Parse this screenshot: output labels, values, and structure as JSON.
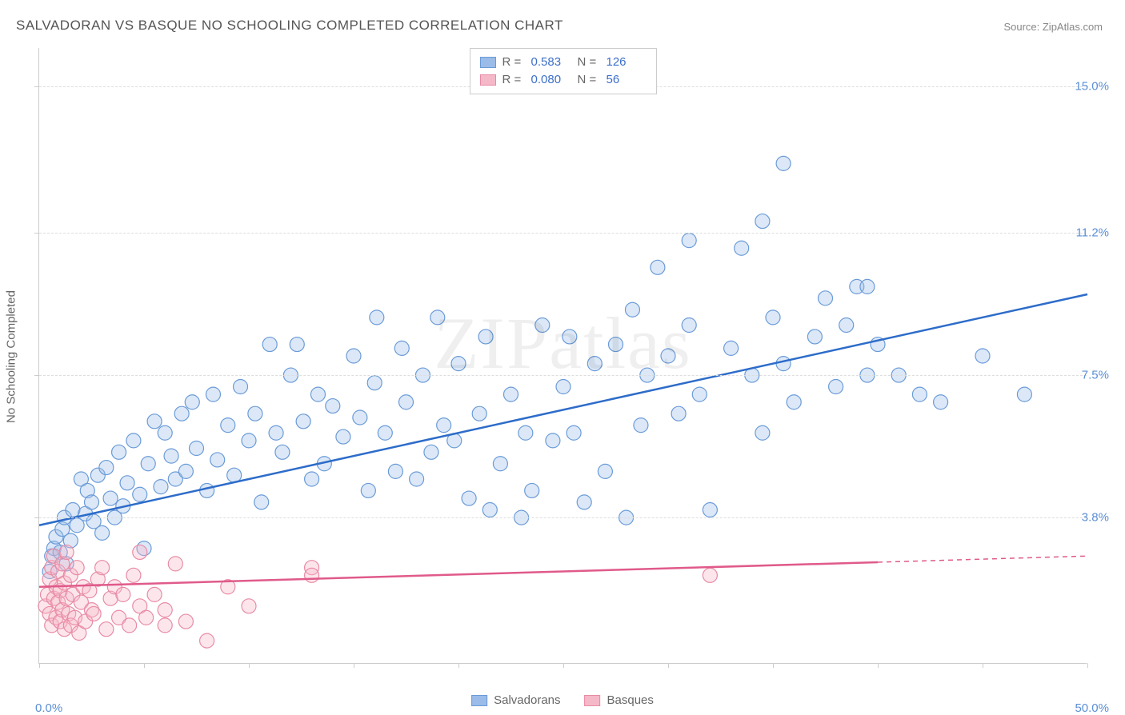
{
  "title": "SALVADORAN VS BASQUE NO SCHOOLING COMPLETED CORRELATION CHART",
  "source_label": "Source: ZipAtlas.com",
  "y_axis_label": "No Schooling Completed",
  "watermark": "ZIPatlas",
  "chart": {
    "type": "scatter",
    "background_color": "#ffffff",
    "grid_color": "#dddddd",
    "axis_color": "#cccccc",
    "x_range": [
      0,
      50
    ],
    "y_range": [
      0,
      16
    ],
    "x_tick_interval": 5,
    "y_ticks": [
      3.8,
      7.5,
      11.2,
      15.0
    ],
    "x_labels": [
      {
        "value": 0,
        "text": "0.0%"
      },
      {
        "value": 50,
        "text": "50.0%"
      }
    ],
    "y_labels": [
      {
        "value": 3.8,
        "text": "3.8%"
      },
      {
        "value": 7.5,
        "text": "7.5%"
      },
      {
        "value": 11.2,
        "text": "11.2%"
      },
      {
        "value": 15.0,
        "text": "15.0%"
      }
    ],
    "marker_radius": 9,
    "marker_stroke_width": 1.2,
    "marker_fill_opacity": 0.35,
    "trend_line_width": 2.5,
    "series": [
      {
        "name": "Salvadorans",
        "fill_color": "#9bbce8",
        "stroke_color": "#6a9bd8",
        "trend_color": "#2d6cc9",
        "r_value": "0.583",
        "n_value": "126",
        "trend_line": {
          "x1": 0,
          "y1": 3.6,
          "x2": 50,
          "y2": 9.6
        },
        "trend_dashed_from_x": null,
        "points": [
          [
            0.5,
            2.4
          ],
          [
            0.6,
            2.8
          ],
          [
            0.7,
            3.0
          ],
          [
            0.8,
            3.3
          ],
          [
            1.0,
            2.9
          ],
          [
            1.1,
            3.5
          ],
          [
            1.2,
            3.8
          ],
          [
            1.3,
            2.6
          ],
          [
            1.5,
            3.2
          ],
          [
            1.6,
            4.0
          ],
          [
            1.8,
            3.6
          ],
          [
            2.0,
            4.8
          ],
          [
            2.2,
            3.9
          ],
          [
            2.3,
            4.5
          ],
          [
            2.5,
            4.2
          ],
          [
            2.6,
            3.7
          ],
          [
            2.8,
            4.9
          ],
          [
            3.0,
            3.4
          ],
          [
            3.2,
            5.1
          ],
          [
            3.4,
            4.3
          ],
          [
            3.6,
            3.8
          ],
          [
            3.8,
            5.5
          ],
          [
            4.0,
            4.1
          ],
          [
            4.2,
            4.7
          ],
          [
            4.5,
            5.8
          ],
          [
            4.8,
            4.4
          ],
          [
            5.0,
            3.0
          ],
          [
            5.2,
            5.2
          ],
          [
            5.5,
            6.3
          ],
          [
            5.8,
            4.6
          ],
          [
            6.0,
            6.0
          ],
          [
            6.3,
            5.4
          ],
          [
            6.5,
            4.8
          ],
          [
            6.8,
            6.5
          ],
          [
            7.0,
            5.0
          ],
          [
            7.3,
            6.8
          ],
          [
            7.5,
            5.6
          ],
          [
            8.0,
            4.5
          ],
          [
            8.3,
            7.0
          ],
          [
            8.5,
            5.3
          ],
          [
            9.0,
            6.2
          ],
          [
            9.3,
            4.9
          ],
          [
            9.6,
            7.2
          ],
          [
            10.0,
            5.8
          ],
          [
            10.3,
            6.5
          ],
          [
            10.6,
            4.2
          ],
          [
            11.0,
            8.3
          ],
          [
            11.3,
            6.0
          ],
          [
            11.6,
            5.5
          ],
          [
            12.0,
            7.5
          ],
          [
            12.3,
            8.3
          ],
          [
            12.6,
            6.3
          ],
          [
            13.0,
            4.8
          ],
          [
            13.3,
            7.0
          ],
          [
            13.6,
            5.2
          ],
          [
            14.0,
            6.7
          ],
          [
            14.5,
            5.9
          ],
          [
            15.0,
            8.0
          ],
          [
            15.3,
            6.4
          ],
          [
            15.7,
            4.5
          ],
          [
            16.0,
            7.3
          ],
          [
            16.1,
            9.0
          ],
          [
            16.5,
            6.0
          ],
          [
            17.0,
            5.0
          ],
          [
            17.3,
            8.2
          ],
          [
            17.5,
            6.8
          ],
          [
            18.0,
            4.8
          ],
          [
            18.3,
            7.5
          ],
          [
            18.7,
            5.5
          ],
          [
            19.0,
            9.0
          ],
          [
            19.3,
            6.2
          ],
          [
            19.8,
            5.8
          ],
          [
            20.0,
            7.8
          ],
          [
            20.5,
            4.3
          ],
          [
            21.0,
            6.5
          ],
          [
            21.3,
            8.5
          ],
          [
            21.5,
            4.0
          ],
          [
            22.0,
            5.2
          ],
          [
            22.5,
            7.0
          ],
          [
            23.0,
            3.8
          ],
          [
            23.2,
            6.0
          ],
          [
            23.5,
            4.5
          ],
          [
            24.0,
            8.8
          ],
          [
            24.5,
            5.8
          ],
          [
            25.0,
            7.2
          ],
          [
            25.3,
            8.5
          ],
          [
            25.5,
            6.0
          ],
          [
            26.0,
            4.2
          ],
          [
            26.5,
            7.8
          ],
          [
            27.0,
            5.0
          ],
          [
            27.5,
            8.3
          ],
          [
            28.0,
            3.8
          ],
          [
            28.3,
            9.2
          ],
          [
            28.7,
            6.2
          ],
          [
            29.0,
            7.5
          ],
          [
            29.5,
            10.3
          ],
          [
            30.0,
            8.0
          ],
          [
            30.5,
            6.5
          ],
          [
            31.0,
            11.0
          ],
          [
            31.0,
            8.8
          ],
          [
            31.5,
            7.0
          ],
          [
            32.0,
            4.0
          ],
          [
            33.0,
            8.2
          ],
          [
            33.5,
            10.8
          ],
          [
            34.0,
            7.5
          ],
          [
            34.5,
            6.0
          ],
          [
            34.5,
            11.5
          ],
          [
            35.0,
            9.0
          ],
          [
            35.5,
            7.8
          ],
          [
            35.5,
            13.0
          ],
          [
            36.0,
            6.8
          ],
          [
            37.0,
            8.5
          ],
          [
            37.5,
            9.5
          ],
          [
            38.0,
            7.2
          ],
          [
            38.5,
            8.8
          ],
          [
            39.0,
            9.8
          ],
          [
            39.5,
            7.5
          ],
          [
            39.5,
            9.8
          ],
          [
            40.0,
            8.3
          ],
          [
            41.0,
            7.5
          ],
          [
            42.0,
            7.0
          ],
          [
            43.0,
            6.8
          ],
          [
            45.0,
            8.0
          ],
          [
            47.0,
            7.0
          ]
        ]
      },
      {
        "name": "Basques",
        "fill_color": "#f5b8c8",
        "stroke_color": "#e88ba5",
        "trend_color": "#e05a8a",
        "r_value": "0.080",
        "n_value": "56",
        "trend_line": {
          "x1": 0,
          "y1": 2.0,
          "x2": 50,
          "y2": 2.8
        },
        "trend_dashed_from_x": 40,
        "points": [
          [
            0.3,
            1.5
          ],
          [
            0.4,
            1.8
          ],
          [
            0.5,
            2.2
          ],
          [
            0.5,
            1.3
          ],
          [
            0.6,
            2.5
          ],
          [
            0.6,
            1.0
          ],
          [
            0.7,
            1.7
          ],
          [
            0.7,
            2.8
          ],
          [
            0.8,
            1.2
          ],
          [
            0.8,
            2.0
          ],
          [
            0.9,
            1.6
          ],
          [
            0.9,
            2.4
          ],
          [
            1.0,
            1.1
          ],
          [
            1.0,
            1.9
          ],
          [
            1.1,
            2.6
          ],
          [
            1.1,
            1.4
          ],
          [
            1.2,
            0.9
          ],
          [
            1.2,
            2.1
          ],
          [
            1.3,
            1.7
          ],
          [
            1.3,
            2.9
          ],
          [
            1.4,
            1.3
          ],
          [
            1.5,
            2.3
          ],
          [
            1.5,
            1.0
          ],
          [
            1.6,
            1.8
          ],
          [
            1.7,
            1.2
          ],
          [
            1.8,
            2.5
          ],
          [
            1.9,
            0.8
          ],
          [
            2.0,
            1.6
          ],
          [
            2.1,
            2.0
          ],
          [
            2.2,
            1.1
          ],
          [
            2.4,
            1.9
          ],
          [
            2.5,
            1.4
          ],
          [
            2.6,
            1.3
          ],
          [
            2.8,
            2.2
          ],
          [
            3.0,
            2.5
          ],
          [
            3.2,
            0.9
          ],
          [
            3.4,
            1.7
          ],
          [
            3.6,
            2.0
          ],
          [
            3.8,
            1.2
          ],
          [
            4.0,
            1.8
          ],
          [
            4.3,
            1.0
          ],
          [
            4.5,
            2.3
          ],
          [
            4.8,
            2.9
          ],
          [
            4.8,
            1.5
          ],
          [
            5.1,
            1.2
          ],
          [
            5.5,
            1.8
          ],
          [
            6.0,
            1.4
          ],
          [
            6.0,
            1.0
          ],
          [
            6.5,
            2.6
          ],
          [
            7.0,
            1.1
          ],
          [
            8.0,
            0.6
          ],
          [
            9.0,
            2.0
          ],
          [
            10.0,
            1.5
          ],
          [
            13.0,
            2.5
          ],
          [
            13.0,
            2.3
          ],
          [
            32.0,
            2.3
          ]
        ]
      }
    ]
  },
  "legend_bottom": [
    {
      "swatch_fill": "#9bbce8",
      "swatch_stroke": "#6a9bd8",
      "label": "Salvadorans"
    },
    {
      "swatch_fill": "#f5b8c8",
      "swatch_stroke": "#e88ba5",
      "label": "Basques"
    }
  ]
}
